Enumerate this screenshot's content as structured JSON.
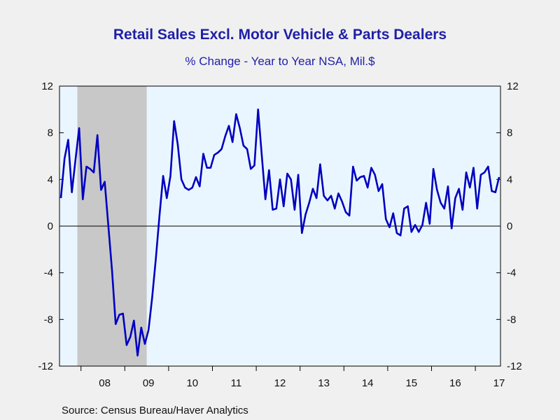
{
  "chart_data": {
    "type": "line",
    "title": "Retail Sales Excl. Motor Vehicle & Parts Dealers",
    "subtitle": "% Change - Year to Year     NSA, Mil.$",
    "source": "Source:  Census Bureau/Haver Analytics",
    "ylim": [
      -12,
      12
    ],
    "y_ticks": [
      "12",
      "8",
      "4",
      "0",
      "-4",
      "-8",
      "-12"
    ],
    "x_tick_labels": [
      "08",
      "09",
      "10",
      "11",
      "12",
      "13",
      "14",
      "15",
      "16",
      "17"
    ],
    "grid": false,
    "colors": {
      "line": "#0000c0",
      "plot_bg": "#eaf6ff",
      "recession": "#c8c8c8"
    },
    "recession": {
      "start": "2007-12",
      "end": "2009-06"
    },
    "series": [
      {
        "start": "2007-07",
        "values": [
          2.4,
          5.8,
          7.4,
          2.9,
          5.7,
          8.4,
          2.3,
          5.1,
          4.9,
          4.6,
          7.8,
          3.1,
          3.8,
          0.0,
          -3.8,
          -8.4,
          -7.6,
          -7.5,
          -10.2,
          -9.5,
          -8.1,
          -11.1,
          -8.7,
          -10.1,
          -8.9,
          -6.1,
          -2.8,
          0.9,
          4.3,
          2.4,
          4.3,
          9.0,
          7.0,
          4.0,
          3.3,
          3.1,
          3.3,
          4.2,
          3.4,
          6.2,
          5.0,
          5.0,
          6.1,
          6.3,
          6.6,
          7.7,
          8.6,
          7.2,
          9.6,
          8.4,
          6.9,
          6.6,
          4.9,
          5.2,
          10.0,
          6.1,
          2.3,
          4.8,
          1.4,
          1.5,
          4.0,
          1.7,
          4.5,
          4.0,
          1.4,
          4.4,
          -0.6,
          1.0,
          2.0,
          3.2,
          2.4,
          5.3,
          2.6,
          2.2,
          2.6,
          1.5,
          2.8,
          2.1,
          1.2,
          0.9,
          5.1,
          3.9,
          4.2,
          4.3,
          3.3,
          5.0,
          4.4,
          3.0,
          3.6,
          0.6,
          -0.1,
          1.1,
          -0.6,
          -0.8,
          1.5,
          1.7,
          -0.5,
          0.1,
          -0.5,
          0.1,
          2.0,
          0.2,
          4.9,
          3.1,
          2.0,
          1.5,
          3.4,
          -0.2,
          2.4,
          3.2,
          1.4,
          4.6,
          3.3,
          5.0,
          1.5,
          4.4,
          4.6,
          5.1,
          3.0,
          2.9,
          4.2
        ]
      }
    ]
  }
}
